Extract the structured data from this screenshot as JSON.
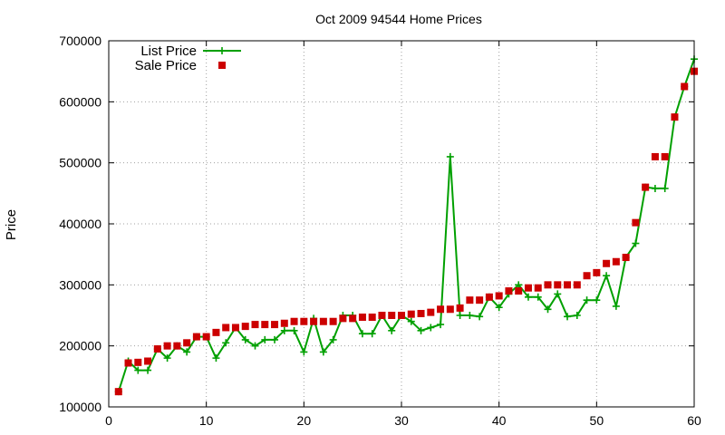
{
  "chart_data": {
    "type": "line",
    "title": "Oct 2009 94544 Home Prices",
    "xlabel": "",
    "ylabel": "Price",
    "xlim": [
      0,
      60
    ],
    "ylim": [
      100000,
      700000
    ],
    "xticks": [
      "0",
      "10",
      "20",
      "30",
      "40",
      "50",
      "60"
    ],
    "yticks": [
      "100000",
      "200000",
      "300000",
      "400000",
      "500000",
      "600000",
      "700000"
    ],
    "grid": true,
    "legend_position": "top-left",
    "x": [
      1,
      2,
      3,
      4,
      5,
      6,
      7,
      8,
      9,
      10,
      11,
      12,
      13,
      14,
      15,
      16,
      17,
      18,
      19,
      20,
      21,
      22,
      23,
      24,
      25,
      26,
      27,
      28,
      29,
      30,
      31,
      32,
      33,
      34,
      35,
      36,
      37,
      38,
      39,
      40,
      41,
      42,
      43,
      44,
      45,
      46,
      47,
      48,
      49,
      50,
      51,
      52,
      53,
      54,
      55,
      56,
      57,
      58,
      59,
      60
    ],
    "series": [
      {
        "name": "List Price",
        "style": "line+cross",
        "color": "#00a000",
        "values": [
          125000,
          175000,
          160000,
          160000,
          195000,
          180000,
          200000,
          190000,
          215000,
          215000,
          180000,
          205000,
          230000,
          210000,
          200000,
          210000,
          210000,
          225000,
          225000,
          190000,
          245000,
          190000,
          210000,
          250000,
          250000,
          220000,
          220000,
          250000,
          225000,
          250000,
          240000,
          225000,
          230000,
          235000,
          510000,
          250000,
          250000,
          248000,
          280000,
          263000,
          285000,
          300000,
          280000,
          280000,
          260000,
          285000,
          248000,
          250000,
          275000,
          275000,
          315000,
          265000,
          345000,
          368000,
          460000,
          458000,
          458000,
          575000,
          625000,
          670000
        ]
      },
      {
        "name": "Sale Price",
        "style": "square",
        "color": "#cc0000",
        "values": [
          125000,
          172000,
          173000,
          175000,
          195000,
          200000,
          200000,
          205000,
          215000,
          215000,
          222000,
          230000,
          230000,
          232000,
          235000,
          235000,
          235000,
          237000,
          240000,
          240000,
          240000,
          240000,
          240000,
          245000,
          245000,
          247000,
          247000,
          250000,
          250000,
          250000,
          252000,
          253000,
          255000,
          260000,
          260000,
          262000,
          275000,
          275000,
          280000,
          282000,
          290000,
          290000,
          295000,
          295000,
          300000,
          300000,
          300000,
          300000,
          315000,
          320000,
          335000,
          338000,
          345000,
          402000,
          460000,
          510000,
          510000,
          575000,
          625000,
          650000
        ]
      }
    ]
  }
}
